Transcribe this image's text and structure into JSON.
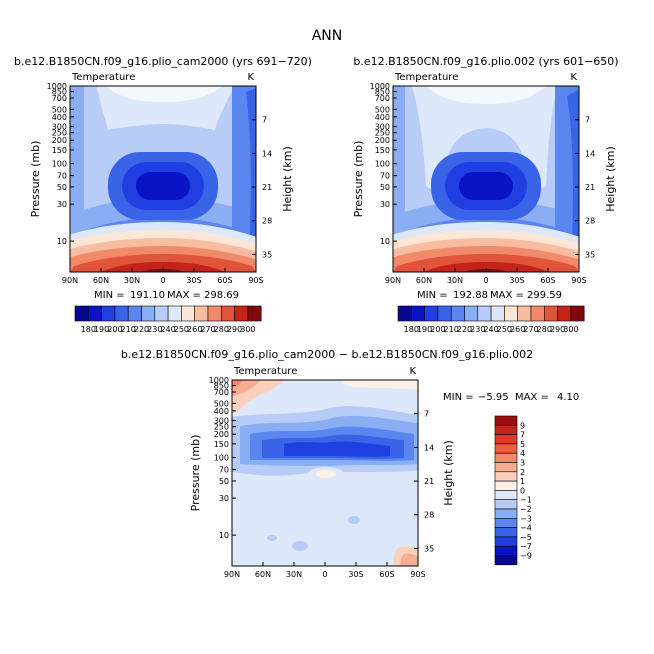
{
  "figure": {
    "title": "ANN"
  },
  "chart_data": [
    {
      "type": "heatmap",
      "title": "b.e12.B1850CN.f09_g16.plio_cam2000 (yrs 691−720)",
      "variable": "Temperature",
      "units": "K",
      "ylabel_left": "Pressure (mb)",
      "ylabel_right": "Height (km)",
      "x_ticks": [
        "90N",
        "60N",
        "30N",
        "0",
        "30S",
        "60S",
        "90S"
      ],
      "y_ticks_left": [
        "10",
        "30",
        "50",
        "70",
        "100",
        "150",
        "200",
        "250",
        "300",
        "400",
        "500",
        "700",
        "850",
        "1000"
      ],
      "y_ticks_right": [
        "35",
        "28",
        "21",
        "14",
        "7"
      ],
      "stats": {
        "min_label": "MIN =",
        "min": "191.10",
        "max_label": "MAX =",
        "max": "298.69"
      },
      "approx_values": {
        "upper_stratosphere": 230,
        "tropical_tropopause": 195,
        "surface_tropics": 299,
        "surface_poles": 250
      }
    },
    {
      "type": "heatmap",
      "title": "b.e12.B1850CN.f09_g16.plio.002 (yrs 601−650)",
      "variable": "Temperature",
      "units": "K",
      "ylabel_left": "Pressure (mb)",
      "ylabel_right": "Height (km)",
      "x_ticks": [
        "90N",
        "60N",
        "30N",
        "0",
        "30S",
        "60S",
        "90S"
      ],
      "y_ticks_left": [
        "10",
        "30",
        "50",
        "70",
        "100",
        "150",
        "200",
        "250",
        "300",
        "400",
        "500",
        "700",
        "850",
        "1000"
      ],
      "y_ticks_right": [
        "35",
        "28",
        "21",
        "14",
        "7"
      ],
      "stats": {
        "min_label": "MIN =",
        "min": "192.88",
        "max_label": "MAX =",
        "max": "299.59"
      },
      "approx_values": {
        "upper_stratosphere": 232,
        "tropical_tropopause": 196,
        "surface_tropics": 300,
        "surface_poles": 252
      }
    },
    {
      "type": "heatmap",
      "title": "b.e12.B1850CN.f09_g16.plio_cam2000 − b.e12.B1850CN.f09_g16.plio.002",
      "variable": "Temperature",
      "units": "K",
      "ylabel_left": "Pressure (mb)",
      "ylabel_right": "Height (km)",
      "x_ticks": [
        "90N",
        "60N",
        "30N",
        "0",
        "30S",
        "60S",
        "90S"
      ],
      "y_ticks_left": [
        "10",
        "30",
        "50",
        "70",
        "100",
        "150",
        "200",
        "250",
        "300",
        "400",
        "500",
        "700",
        "850",
        "1000"
      ],
      "y_ticks_right": [
        "35",
        "28",
        "21",
        "14",
        "7"
      ],
      "stats": {
        "min_label": "MIN =",
        "min": "−5.95",
        "max_label": "MAX =",
        "max": "4.10"
      },
      "approx_values": {
        "upper_stratosphere_np": 3,
        "lower_stratosphere_band": -6,
        "troposphere": -1,
        "surface_sp": 1
      }
    }
  ],
  "colorbars": {
    "absolute": {
      "labels": [
        "180",
        "190",
        "200",
        "210",
        "220",
        "230",
        "240",
        "250",
        "260",
        "270",
        "280",
        "290",
        "300"
      ],
      "colors": [
        "#08088e",
        "#0a14c6",
        "#1f3fe0",
        "#3a64e8",
        "#5b86ef",
        "#8aaef4",
        "#b7cdf7",
        "#dde8fb",
        "#fde6d6",
        "#f8bca0",
        "#f1896b",
        "#e0543b",
        "#c42418",
        "#7d0b0b"
      ]
    },
    "difference": {
      "labels": [
        "9",
        "7",
        "5",
        "4",
        "3",
        "2",
        "1",
        "0",
        "−1",
        "−2",
        "−3",
        "−4",
        "−5",
        "−7",
        "−9"
      ],
      "colors": [
        "#9c0d0d",
        "#c42418",
        "#de3b26",
        "#ef5e40",
        "#f5876b",
        "#f9ac94",
        "#fcd0bd",
        "#fdf0e6",
        "#dde8fb",
        "#b7cdf7",
        "#8aaef4",
        "#5b86ef",
        "#3a64e8",
        "#1f3fe0",
        "#0a14c6",
        "#08088e"
      ]
    }
  }
}
